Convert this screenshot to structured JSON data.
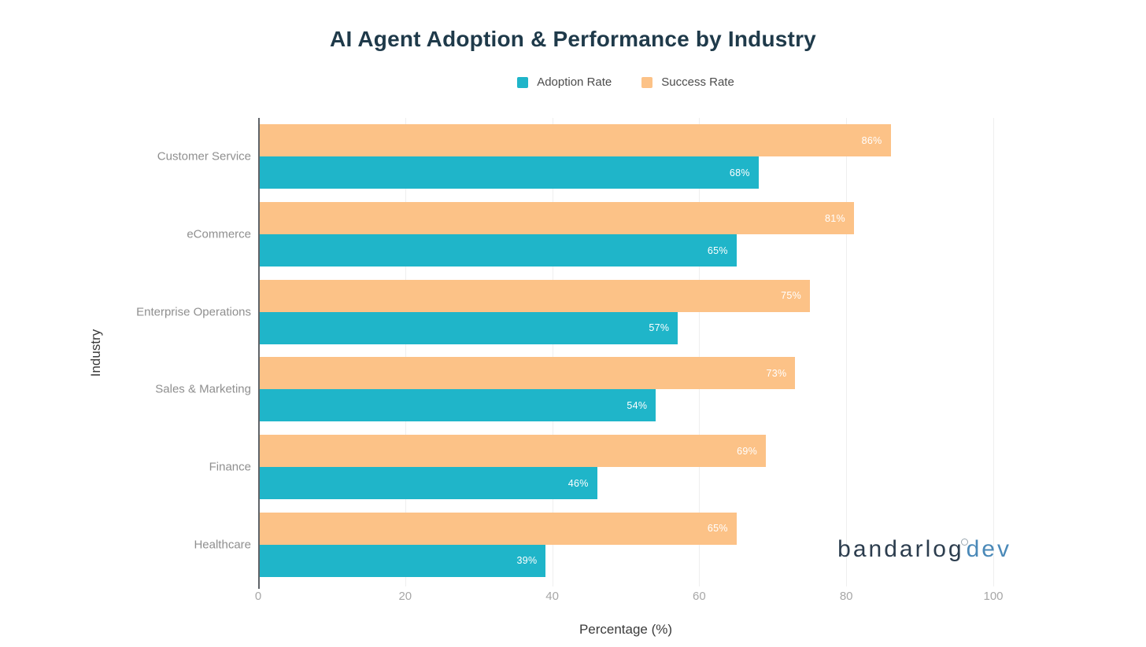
{
  "chart_data": {
    "type": "bar",
    "orientation": "horizontal",
    "title": "AI Agent Adoption & Performance by Industry",
    "xlabel": "Percentage (%)",
    "ylabel": "Industry",
    "xlim": [
      0,
      100
    ],
    "x_ticks": [
      "0",
      "20",
      "40",
      "60",
      "80",
      "100"
    ],
    "grid": "vertical-light",
    "legend_position": "top-center",
    "categories": [
      "Customer Service",
      "eCommerce",
      "Enterprise Operations",
      "Sales & Marketing",
      "Finance",
      "Healthcare"
    ],
    "series": [
      {
        "name": "Adoption Rate",
        "color": "#1fb5c9",
        "values": [
          68,
          65,
          57,
          54,
          46,
          39
        ]
      },
      {
        "name": "Success Rate",
        "color": "#fcc287",
        "values": [
          86,
          81,
          75,
          73,
          69,
          65
        ]
      }
    ],
    "value_label_format": "{value}%",
    "value_label_color": "#ffffff"
  },
  "watermark": {
    "brand": "bandarlog",
    "suffix": "dev",
    "brand_color": "#2c3d4e",
    "suffix_color": "#4a89b8"
  }
}
